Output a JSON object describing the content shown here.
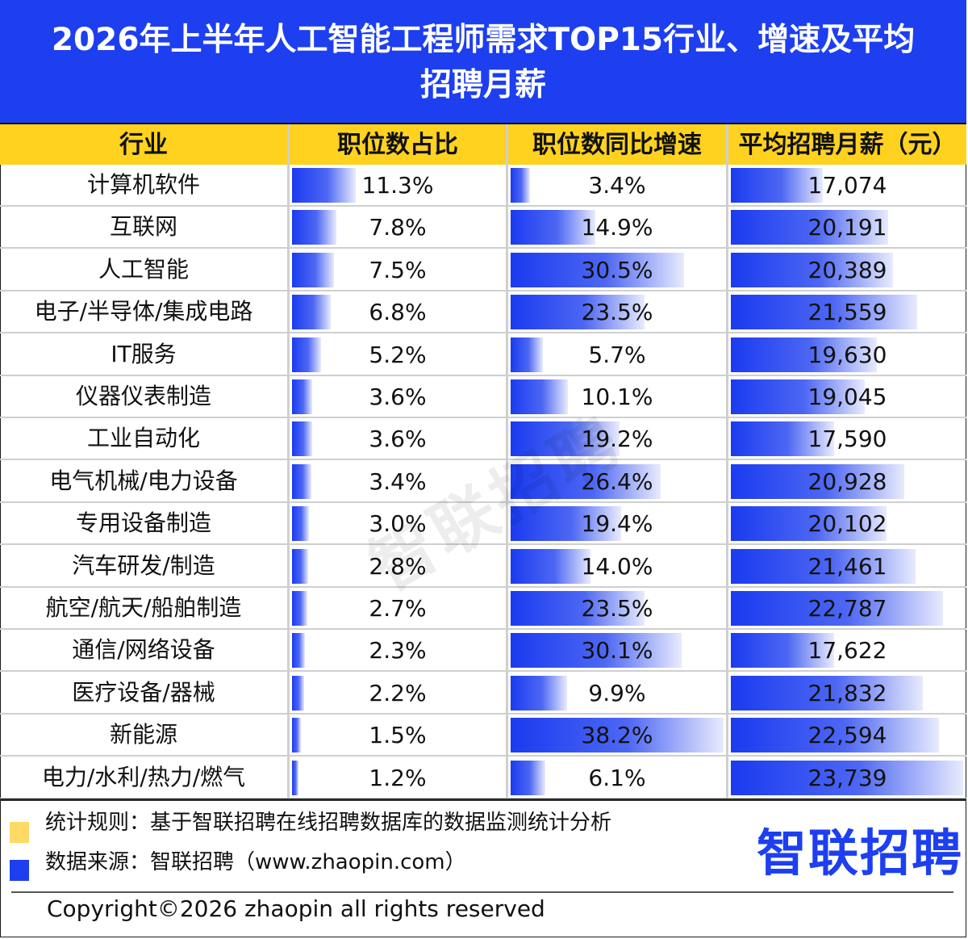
{
  "title_line1": "2026年上半年人工智能工程师需求TOP15行业、增速及平均",
  "title_line2": "招聘月薪",
  "headers": [
    "行业",
    "职位数占比",
    "职位数同比增速",
    "平均招聘月薪（元）"
  ],
  "chart_data": {
    "type": "table",
    "columns": [
      "行业",
      "职位数占比",
      "职位数同比增速",
      "平均招聘月薪（元）"
    ],
    "rows": [
      {
        "industry": "计算机软件",
        "share": 11.3,
        "share_label": "11.3%",
        "growth": 3.4,
        "growth_label": "3.4%",
        "salary": 17074,
        "salary_label": "17,074"
      },
      {
        "industry": "互联网",
        "share": 7.8,
        "share_label": "7.8%",
        "growth": 14.9,
        "growth_label": "14.9%",
        "salary": 20191,
        "salary_label": "20,191"
      },
      {
        "industry": "人工智能",
        "share": 7.5,
        "share_label": "7.5%",
        "growth": 30.5,
        "growth_label": "30.5%",
        "salary": 20389,
        "salary_label": "20,389"
      },
      {
        "industry": "电子/半导体/集成电路",
        "share": 6.8,
        "share_label": "6.8%",
        "growth": 23.5,
        "growth_label": "23.5%",
        "salary": 21559,
        "salary_label": "21,559"
      },
      {
        "industry": "IT服务",
        "share": 5.2,
        "share_label": "5.2%",
        "growth": 5.7,
        "growth_label": "5.7%",
        "salary": 19630,
        "salary_label": "19,630"
      },
      {
        "industry": "仪器仪表制造",
        "share": 3.6,
        "share_label": "3.6%",
        "growth": 10.1,
        "growth_label": "10.1%",
        "salary": 19045,
        "salary_label": "19,045"
      },
      {
        "industry": "工业自动化",
        "share": 3.6,
        "share_label": "3.6%",
        "growth": 19.2,
        "growth_label": "19.2%",
        "salary": 17590,
        "salary_label": "17,590"
      },
      {
        "industry": "电气机械/电力设备",
        "share": 3.4,
        "share_label": "3.4%",
        "growth": 26.4,
        "growth_label": "26.4%",
        "salary": 20928,
        "salary_label": "20,928"
      },
      {
        "industry": "专用设备制造",
        "share": 3.0,
        "share_label": "3.0%",
        "growth": 19.4,
        "growth_label": "19.4%",
        "salary": 20102,
        "salary_label": "20,102"
      },
      {
        "industry": "汽车研发/制造",
        "share": 2.8,
        "share_label": "2.8%",
        "growth": 14.0,
        "growth_label": "14.0%",
        "salary": 21461,
        "salary_label": "21,461"
      },
      {
        "industry": "航空/航天/船舶制造",
        "share": 2.7,
        "share_label": "2.7%",
        "growth": 23.5,
        "growth_label": "23.5%",
        "salary": 22787,
        "salary_label": "22,787"
      },
      {
        "industry": "通信/网络设备",
        "share": 2.3,
        "share_label": "2.3%",
        "growth": 30.1,
        "growth_label": "30.1%",
        "salary": 17622,
        "salary_label": "17,622"
      },
      {
        "industry": "医疗设备/器械",
        "share": 2.2,
        "share_label": "2.2%",
        "growth": 9.9,
        "growth_label": "9.9%",
        "salary": 21832,
        "salary_label": "21,832"
      },
      {
        "industry": "新能源",
        "share": 1.5,
        "share_label": "1.5%",
        "growth": 38.2,
        "growth_label": "38.2%",
        "salary": 22594,
        "salary_label": "22,594"
      },
      {
        "industry": "电力/水利/热力/燃气",
        "share": 1.2,
        "share_label": "1.2%",
        "growth": 6.1,
        "growth_label": "6.1%",
        "salary": 23739,
        "salary_label": "23,739"
      }
    ]
  },
  "colors": {
    "title_bg": "#1d3ff0",
    "header_bg": "#ffd21f",
    "bar": "#1a3bf0",
    "legend_yellow": "#ffd966",
    "legend_blue": "#1d3ff0"
  },
  "footer": {
    "rule_text": "统计规则：基于智联招聘在线招聘数据库的数据监测统计分析",
    "source_text": "数据来源：智联招聘（www.zhaopin.com）",
    "logo_text": "智联招聘",
    "copyright": "Copyright©2026 zhaopin all rights reserved"
  },
  "watermark": "智联招聘"
}
